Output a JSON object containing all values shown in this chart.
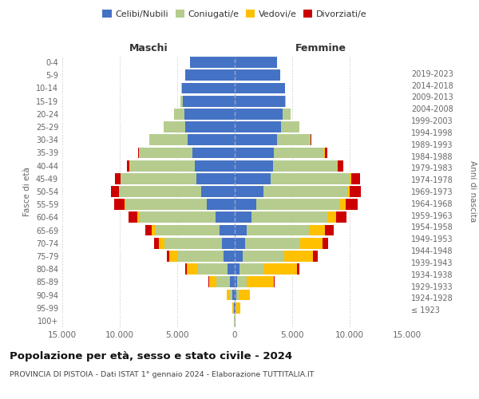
{
  "age_groups": [
    "100+",
    "95-99",
    "90-94",
    "85-89",
    "80-84",
    "75-79",
    "70-74",
    "65-69",
    "60-64",
    "55-59",
    "50-54",
    "45-49",
    "40-44",
    "35-39",
    "30-34",
    "25-29",
    "20-24",
    "15-19",
    "10-14",
    "5-9",
    "0-4"
  ],
  "birth_years": [
    "≤ 1923",
    "1924-1928",
    "1929-1933",
    "1934-1938",
    "1939-1943",
    "1944-1948",
    "1949-1953",
    "1954-1958",
    "1959-1963",
    "1964-1968",
    "1969-1973",
    "1974-1978",
    "1979-1983",
    "1984-1988",
    "1989-1993",
    "1994-1998",
    "1999-2003",
    "2004-2008",
    "2009-2013",
    "2014-2018",
    "2019-2023"
  ],
  "maschi": {
    "celibi": [
      30,
      90,
      200,
      400,
      650,
      950,
      1100,
      1300,
      1700,
      2400,
      2900,
      3300,
      3500,
      3700,
      4100,
      4300,
      4400,
      4500,
      4600,
      4300,
      3900
    ],
    "coniugati": [
      15,
      70,
      280,
      1200,
      2600,
      4000,
      5000,
      5600,
      6600,
      7100,
      7100,
      6600,
      5600,
      4600,
      3300,
      1900,
      850,
      220,
      35,
      5,
      2
    ],
    "vedovi": [
      8,
      60,
      220,
      650,
      950,
      720,
      520,
      310,
      160,
      110,
      85,
      65,
      35,
      12,
      6,
      2,
      1,
      0,
      0,
      0,
      0
    ],
    "divorziati": [
      2,
      5,
      10,
      60,
      120,
      230,
      380,
      550,
      750,
      850,
      700,
      480,
      270,
      110,
      55,
      10,
      5,
      2,
      0,
      0,
      0
    ]
  },
  "femmine": {
    "nubili": [
      25,
      55,
      120,
      220,
      430,
      720,
      920,
      1050,
      1450,
      1900,
      2500,
      3100,
      3300,
      3400,
      3700,
      4000,
      4200,
      4350,
      4350,
      3950,
      3650
    ],
    "coniugate": [
      12,
      55,
      220,
      850,
      2100,
      3600,
      4800,
      5400,
      6600,
      7300,
      7300,
      6900,
      5600,
      4400,
      2900,
      1600,
      650,
      110,
      22,
      3,
      1
    ],
    "vedove": [
      40,
      350,
      950,
      2300,
      2900,
      2500,
      1900,
      1400,
      750,
      430,
      220,
      160,
      90,
      35,
      12,
      3,
      1,
      0,
      0,
      0,
      0
    ],
    "divorziate": [
      2,
      15,
      55,
      110,
      220,
      370,
      530,
      730,
      950,
      1050,
      950,
      750,
      430,
      210,
      85,
      35,
      12,
      2,
      0,
      0,
      0
    ]
  },
  "colors": {
    "celibi_nubili": "#4472c4",
    "coniugati": "#b5cc8e",
    "vedovi": "#ffc000",
    "divorziati": "#cc0000"
  },
  "xlim": 15000,
  "title": "Popolazione per età, sesso e stato civile - 2024",
  "subtitle": "PROVINCIA DI PISTOIA - Dati ISTAT 1° gennaio 2024 - Elaborazione TUTTITALIA.IT",
  "legend_labels": [
    "Celibi/Nubili",
    "Coniugati/e",
    "Vedovi/e",
    "Divorziati/e"
  ],
  "ylabel_left": "Fasce di età",
  "ylabel_right": "Anni di nascita",
  "label_maschi": "Maschi",
  "label_femmine": "Femmine",
  "bg_color": "#ffffff",
  "grid_color": "#cccccc"
}
